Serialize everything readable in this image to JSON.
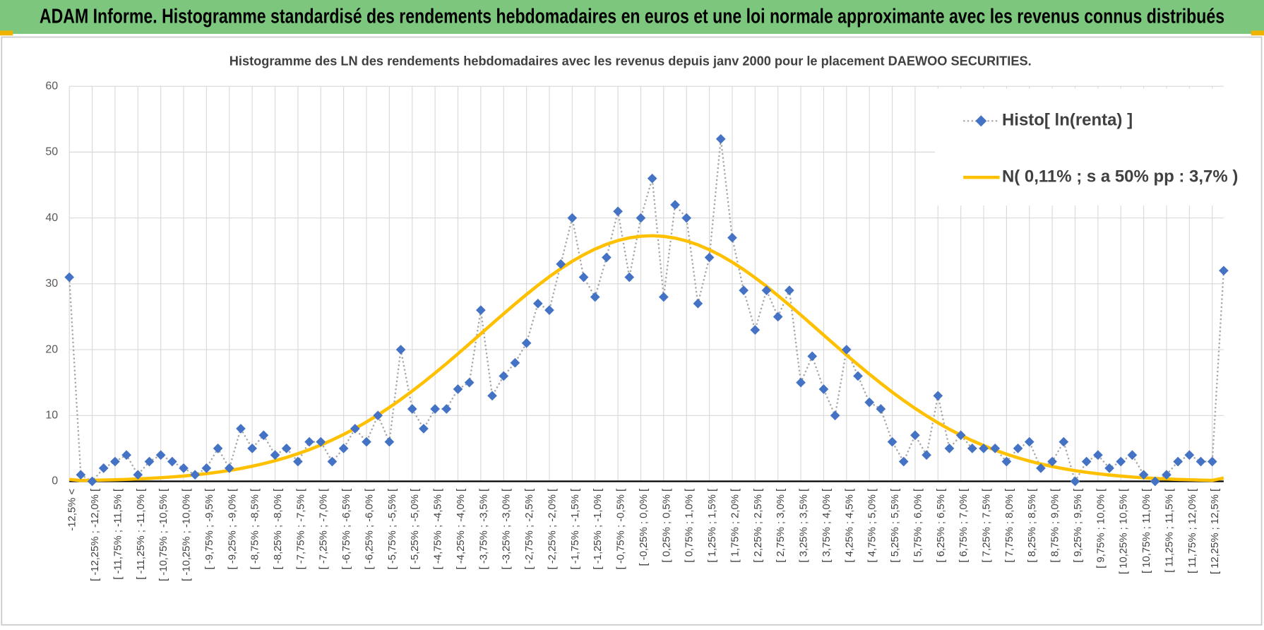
{
  "banner": "ADAM Informe. Histogramme standardisé des rendements hebdomadaires en euros et une loi normale approximante avec les revenus connus distribués",
  "chart_data": {
    "type": "line",
    "title": "Histogramme  des LN des rendements hebdomadaires avec les revenus depuis janv 2000 pour le placement DAEWOO SECURITIES.",
    "categories": [
      "-12,5% <",
      null,
      "[ -12,25% ; -12,0% [",
      null,
      "[ -11,75% ; -11,5% [",
      null,
      "[ -11,25% ; -11,0% [",
      null,
      "[ -10,75% ; -10,5% [",
      null,
      "[ -10,25% ; -10,0% [",
      null,
      "[ -9,75% ; -9,5% [",
      null,
      "[ -9,25% ; -9,0% [",
      null,
      "[ -8,75% ; -8,5% [",
      null,
      "[ -8,25% ; -8,0% [",
      null,
      "[ -7,75% ; -7,5% [",
      null,
      "[ -7,25% ; -7,0% [",
      null,
      "[ -6,75% ; -6,5% [",
      null,
      "[ -6,25% ; -6,0% [",
      null,
      "[ -5,75% ; -5,5% [",
      null,
      "[ -5,25% ; -5,0% [",
      null,
      "[ -4,75% ; -4,5% [",
      null,
      "[ -4,25% ; -4,0% [",
      null,
      "[ -3,75% ; -3,5% [",
      null,
      "[ -3,25% ; -3,0% [",
      null,
      "[ -2,75% ; -2,5% [",
      null,
      "[ -2,25% ; -2,0% [",
      null,
      "[ -1,75% ; -1,5% [",
      null,
      "[ -1,25% ; -1,0% [",
      null,
      "[ -0,75% ; -0,5% [",
      null,
      "[ -0,25% ; 0,0% [",
      null,
      "[ 0,25% ; 0,5% [",
      null,
      "[ 0,75% ; 1,0% [",
      null,
      "[ 1,25% ; 1,5% [",
      null,
      "[ 1,75% ; 2,0% [",
      null,
      "[ 2,25% ; 2,5% [",
      null,
      "[ 2,75% ; 3,0% [",
      null,
      "[ 3,25% ; 3,5% [",
      null,
      "[ 3,75% ; 4,0% [",
      null,
      "[ 4,25% ; 4,5% [",
      null,
      "[ 4,75% ; 5,0% [",
      null,
      "[ 5,25% ; 5,5% [",
      null,
      "[ 5,75% ; 6,0% [",
      null,
      "[ 6,25% ; 6,5% [",
      null,
      "[ 6,75% ; 7,0% [",
      null,
      "[ 7,25% ; 7,5% [",
      null,
      "[ 7,75% ; 8,0% [",
      null,
      "[ 8,25% ; 8,5% [",
      null,
      "[ 8,75% ; 9,0% [",
      null,
      "[ 9,25% ; 9,5% [",
      null,
      "[ 9,75% ; 10,0% [",
      null,
      "[ 10,25% ; 10,5% [",
      null,
      "[ 10,75% ; 11,0% [",
      null,
      "[ 11,25% ; 11,5% [",
      null,
      "[ 11,75% ; 12,0% [",
      null,
      "[ 12,25% ; 12,5% [",
      null
    ],
    "series": [
      {
        "name": "Histo[ ln(renta) ]",
        "color": "#4472c4",
        "values": [
          31,
          1,
          0,
          2,
          3,
          4,
          1,
          3,
          4,
          3,
          2,
          1,
          2,
          5,
          2,
          8,
          5,
          7,
          4,
          5,
          3,
          6,
          6,
          3,
          5,
          8,
          6,
          10,
          6,
          20,
          11,
          8,
          11,
          11,
          14,
          15,
          26,
          13,
          16,
          18,
          21,
          27,
          26,
          33,
          40,
          31,
          28,
          34,
          41,
          31,
          40,
          46,
          28,
          42,
          40,
          27,
          34,
          52,
          37,
          29,
          23,
          29,
          25,
          29,
          15,
          19,
          14,
          10,
          20,
          16,
          12,
          11,
          6,
          3,
          7,
          4,
          13,
          5,
          7,
          5,
          5,
          5,
          3,
          5,
          6,
          2,
          3,
          6,
          0,
          3,
          4,
          2,
          3,
          4,
          1,
          0,
          1,
          3,
          4,
          3,
          3,
          32
        ]
      },
      {
        "name": "N( 0,11% ; s a 50% pp : 3,7% )",
        "color": "#ffc000",
        "values": [
          0.3,
          0.13,
          0.16,
          0.2,
          0.24,
          0.3,
          0.37,
          0.45,
          0.55,
          0.67,
          0.81,
          0.98,
          1.17,
          1.4,
          1.65,
          1.95,
          2.3,
          2.69,
          3.13,
          3.63,
          4.2,
          4.82,
          5.51,
          6.28,
          7.12,
          8.03,
          9.02,
          10.08,
          11.22,
          12.43,
          13.71,
          15.05,
          16.45,
          17.89,
          19.37,
          20.88,
          22.41,
          23.94,
          25.45,
          26.94,
          28.38,
          29.77,
          31.08,
          32.3,
          33.42,
          34.41,
          35.28,
          36.0,
          36.57,
          36.98,
          37.22,
          37.3,
          37.2,
          36.94,
          36.51,
          35.92,
          35.18,
          34.3,
          33.29,
          32.16,
          30.93,
          29.61,
          28.21,
          26.76,
          25.27,
          23.75,
          22.22,
          20.7,
          19.19,
          17.72,
          16.28,
          14.89,
          13.55,
          12.28,
          11.08,
          9.95,
          8.89,
          7.91,
          7.01,
          6.18,
          5.43,
          4.74,
          4.13,
          3.57,
          3.08,
          2.64,
          2.25,
          1.92,
          1.62,
          1.37,
          1.15,
          0.96,
          0.8,
          0.66,
          0.54,
          0.44,
          0.36,
          0.29,
          0.24,
          0.19,
          0.15,
          0.5
        ]
      }
    ],
    "ylim": [
      0,
      60
    ],
    "yticks": [
      0,
      10,
      20,
      30,
      40,
      50,
      60
    ],
    "grid": true,
    "legend": "upper right"
  }
}
